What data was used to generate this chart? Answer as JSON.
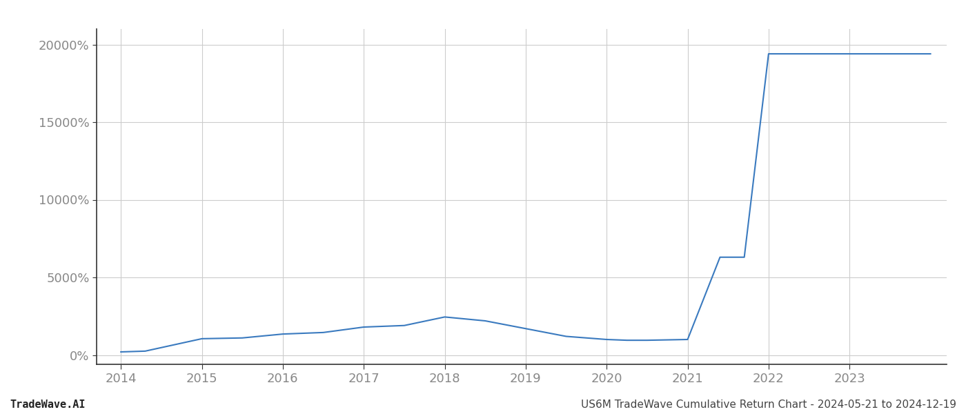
{
  "footer_left": "TradeWave.AI",
  "footer_right": "US6M TradeWave Cumulative Return Chart - 2024-05-21 to 2024-12-19",
  "line_color": "#3a7abf",
  "background_color": "#ffffff",
  "grid_color": "#cccccc",
  "x_values": [
    2014.0,
    2014.3,
    2015.0,
    2015.5,
    2016.0,
    2016.5,
    2017.0,
    2017.5,
    2018.0,
    2018.5,
    2019.0,
    2019.5,
    2020.0,
    2020.25,
    2020.5,
    2021.0,
    2021.4,
    2021.7,
    2022.0,
    2022.5,
    2023.0,
    2023.5,
    2024.0
  ],
  "y_values": [
    200,
    250,
    1050,
    1100,
    1350,
    1450,
    1800,
    1900,
    2450,
    2200,
    1700,
    1200,
    1000,
    950,
    950,
    1000,
    6300,
    6300,
    19400,
    19400,
    19400,
    19400,
    19400
  ],
  "yticks": [
    0,
    5000,
    10000,
    15000,
    20000
  ],
  "ytick_labels": [
    "0%",
    "5000%",
    "10000%",
    "15000%",
    "20000%"
  ],
  "xticks": [
    2014,
    2015,
    2016,
    2017,
    2018,
    2019,
    2020,
    2021,
    2022,
    2023
  ],
  "xlim": [
    2013.7,
    2024.2
  ],
  "ylim": [
    -600,
    21000
  ],
  "line_width": 1.5,
  "font_color": "#888888",
  "tick_fontsize": 13,
  "footer_fontsize": 11,
  "spine_color": "#888888"
}
